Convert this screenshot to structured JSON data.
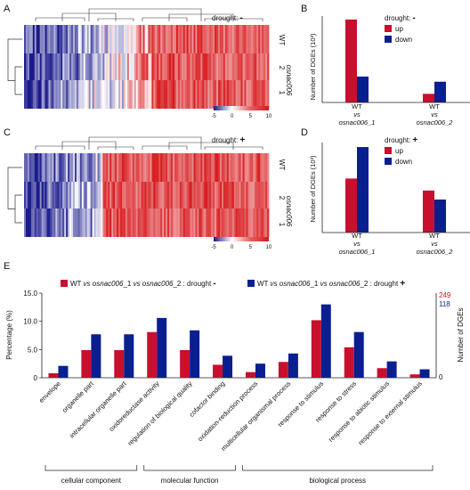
{
  "panel_letters": [
    "A",
    "B",
    "C",
    "D",
    "E"
  ],
  "heatmaps": [
    {
      "panel": "A",
      "condition_label": "drought:",
      "condition_sign": "-",
      "row_labels": [
        "WT",
        "2",
        "1"
      ],
      "group_label": "osnac006",
      "colorbar_ticks": [
        "-5",
        "0",
        "5",
        "10"
      ],
      "colors": {
        "low": "#1a1a8c",
        "mid": "#ffffff",
        "high": "#d7191c"
      }
    },
    {
      "panel": "C",
      "condition_label": "drought:",
      "condition_sign": "+",
      "row_labels": [
        "WT",
        "2",
        "1"
      ],
      "group_label": "osnac006",
      "colorbar_ticks": [
        "-5",
        "0",
        "5",
        "10"
      ],
      "colors": {
        "low": "#1a1a8c",
        "mid": "#ffffff",
        "high": "#d7191c"
      }
    }
  ],
  "chart_data": [
    {
      "panel": "B",
      "type": "bar",
      "legend_title": "drought:",
      "legend_sign": "-",
      "ylabel": "Number of DGEs (10³)",
      "ylim": [
        0,
        5
      ],
      "categories": [
        {
          "line1": "WT",
          "line2": "vs",
          "line3": "osnac006_1"
        },
        {
          "line1": "WT",
          "line2": "vs",
          "line3": "osnac006_2"
        }
      ],
      "series": [
        {
          "name": "up",
          "color": "#c8102e",
          "values": [
            4.8,
            0.5
          ]
        },
        {
          "name": "down",
          "color": "#0a1f8f",
          "values": [
            1.5,
            1.2
          ]
        }
      ]
    },
    {
      "panel": "D",
      "type": "bar",
      "legend_title": "drought:",
      "legend_sign": "+",
      "ylabel": "Number of DGEs (10³)",
      "ylim": [
        0,
        3
      ],
      "categories": [
        {
          "line1": "WT",
          "line2": "vs",
          "line3": "osnac006_1"
        },
        {
          "line1": "WT",
          "line2": "vs",
          "line3": "osnac006_2"
        }
      ],
      "series": [
        {
          "name": "up",
          "color": "#c8102e",
          "values": [
            1.8,
            1.4
          ]
        },
        {
          "name": "down",
          "color": "#0a1f8f",
          "values": [
            2.85,
            1.1
          ]
        }
      ]
    },
    {
      "panel": "E",
      "type": "bar",
      "ylabel": "Percentage (%)",
      "y2label": "Number of DGEs",
      "ylim": [
        0,
        15
      ],
      "yticks": [
        "0",
        "5.0",
        "10.0",
        "15.0"
      ],
      "y2_top_values": [
        "249",
        "118"
      ],
      "y2_bottom_value": "0",
      "categories": [
        "envelope",
        "organelle part",
        "intracellular organelle part",
        "oxidoreductase activity",
        "regulation of biological quality",
        "cofactor binding",
        "oxidation-reduction process",
        "multicellular organismal process",
        "response to stimulus",
        "response to stress",
        "response to abiotic stimulus",
        "response to external stimulus"
      ],
      "series": [
        {
          "name": "WT vs osnac006_1 vs osnac006_2 : drought -",
          "color": "#c8102e",
          "values": [
            0.8,
            4.9,
            4.9,
            8.1,
            4.9,
            2.3,
            1.0,
            2.8,
            10.2,
            5.4,
            1.7,
            0.6
          ]
        },
        {
          "name": "WT vs osnac006_1 vs osnac006_2 : drought +",
          "color": "#0a1f8f",
          "values": [
            2.1,
            7.7,
            7.7,
            10.6,
            8.4,
            3.9,
            2.5,
            4.3,
            13.0,
            8.1,
            2.9,
            1.5
          ]
        }
      ],
      "legend_items": [
        {
          "p1": "WT ",
          "p2": "vs",
          "p3": " osnac006",
          "p4": "_1 ",
          "p5": "vs",
          "p6": " osnac006",
          "p7": "_2 : drought ",
          "sign": "-"
        },
        {
          "p1": "WT ",
          "p2": "vs",
          "p3": " osnac006",
          "p4": "_1 ",
          "p5": "vs",
          "p6": " osnac006",
          "p7": "_2 : drought ",
          "sign": "+"
        }
      ],
      "groups": [
        {
          "label": "cellular component",
          "from": 0,
          "to": 2
        },
        {
          "label": "molecular function",
          "from": 3,
          "to": 5
        },
        {
          "label": "biological process",
          "from": 6,
          "to": 11
        }
      ]
    }
  ]
}
